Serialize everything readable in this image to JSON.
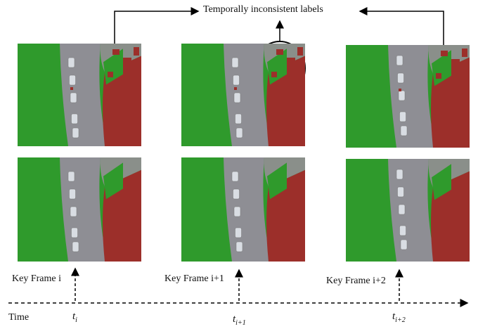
{
  "title": "Temporally inconsistent labels",
  "axis_label": "Time",
  "time_marks": [
    {
      "base": "t",
      "sub": "i"
    },
    {
      "base": "t",
      "sub": "i+1"
    },
    {
      "base": "t",
      "sub": "i+2"
    }
  ],
  "key_frames": [
    "Key Frame i",
    "Key Frame i+1",
    "Key Frame i+2"
  ],
  "colors": {
    "vegetation": "#2f9a2c",
    "road": "#8e8e94",
    "building": "#9c2f2a",
    "car": "#d9dde3"
  }
}
